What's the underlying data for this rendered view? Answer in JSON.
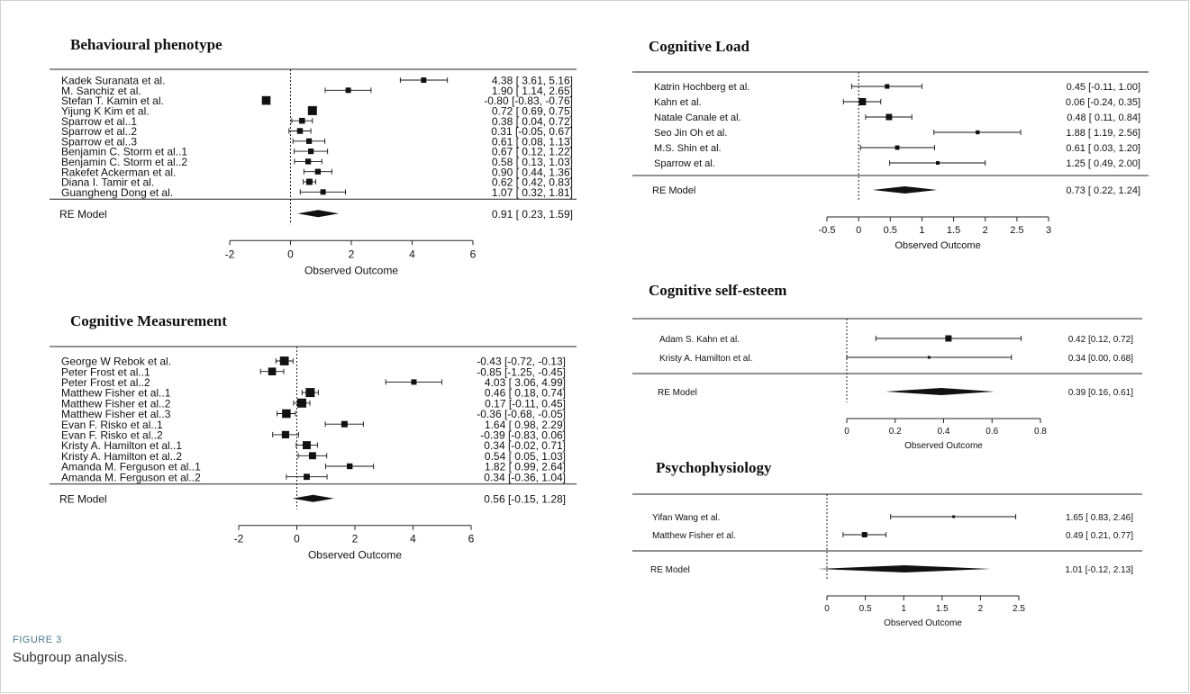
{
  "figure": {
    "label": "FIGURE 3",
    "caption": "Subgroup analysis."
  },
  "chart_data": [
    {
      "type": "forest",
      "title": "Behavioural phenotype",
      "xlabel": "Observed Outcome",
      "xlim": [
        -2,
        6
      ],
      "ticks": [
        -2,
        0,
        2,
        4,
        6
      ],
      "tick_labels": [
        "-2",
        "0",
        "2",
        "4",
        "6"
      ],
      "reference_line": 0,
      "studies": [
        {
          "name": "Kadek Suranata et al.",
          "est": 4.38,
          "lo": 3.61,
          "hi": 5.16,
          "ci_text": "4.38 [ 3.61,  5.16]"
        },
        {
          "name": "M. Sanchiz et al.",
          "est": 1.9,
          "lo": 1.14,
          "hi": 2.65,
          "ci_text": "1.90 [ 1.14,  2.65]"
        },
        {
          "name": "Stefan T. Kamin et al.",
          "est": -0.8,
          "lo": -0.83,
          "hi": -0.76,
          "ci_text": "-0.80 [-0.83, -0.76]"
        },
        {
          "name": "Yijung K Kim et al.",
          "est": 0.72,
          "lo": 0.69,
          "hi": 0.75,
          "ci_text": "0.72 [ 0.69,  0.75]"
        },
        {
          "name": "Sparrow et al..1",
          "est": 0.38,
          "lo": 0.04,
          "hi": 0.72,
          "ci_text": "0.38 [ 0.04,  0.72]"
        },
        {
          "name": "Sparrow et al..2",
          "est": 0.31,
          "lo": -0.05,
          "hi": 0.67,
          "ci_text": "0.31 [-0.05,  0.67]"
        },
        {
          "name": "Sparrow et al..3",
          "est": 0.61,
          "lo": 0.08,
          "hi": 1.13,
          "ci_text": "0.61 [ 0.08,  1.13]"
        },
        {
          "name": "Benjamin C. Storm et al..1",
          "est": 0.67,
          "lo": 0.12,
          "hi": 1.22,
          "ci_text": "0.67 [ 0.12,  1.22]"
        },
        {
          "name": "Benjamin C. Storm et al..2",
          "est": 0.58,
          "lo": 0.13,
          "hi": 1.03,
          "ci_text": "0.58 [ 0.13,  1.03]"
        },
        {
          "name": "Rakefet Ackerman et al.",
          "est": 0.9,
          "lo": 0.44,
          "hi": 1.36,
          "ci_text": "0.90 [ 0.44,  1.36]"
        },
        {
          "name": "Diana I. Tamir et al.",
          "est": 0.62,
          "lo": 0.42,
          "hi": 0.83,
          "ci_text": "0.62 [ 0.42,  0.83]"
        },
        {
          "name": "Guangheng Dong et al.",
          "est": 1.07,
          "lo": 0.32,
          "hi": 1.81,
          "ci_text": "1.07 [ 0.32,  1.81]"
        }
      ],
      "pooled": {
        "name": "RE Model",
        "est": 0.91,
        "lo": 0.23,
        "hi": 1.59,
        "ci_text": "0.91 [ 0.23,  1.59]"
      }
    },
    {
      "type": "forest",
      "title": "Cognitive Measurement",
      "xlabel": "Observed Outcome",
      "xlim": [
        -2,
        6
      ],
      "ticks": [
        -2,
        0,
        2,
        4,
        6
      ],
      "tick_labels": [
        "-2",
        "0",
        "2",
        "4",
        "6"
      ],
      "reference_line": 0,
      "studies": [
        {
          "name": "George W Rebok et al.",
          "est": -0.43,
          "lo": -0.72,
          "hi": -0.13,
          "ci_text": "-0.43 [-0.72, -0.13]"
        },
        {
          "name": "Peter Frost et al..1",
          "est": -0.85,
          "lo": -1.25,
          "hi": -0.45,
          "ci_text": "-0.85 [-1.25, -0.45]"
        },
        {
          "name": "Peter Frost et al..2",
          "est": 4.03,
          "lo": 3.06,
          "hi": 4.99,
          "ci_text": "4.03 [ 3.06,  4.99]"
        },
        {
          "name": "Matthew Fisher et al..1",
          "est": 0.46,
          "lo": 0.18,
          "hi": 0.74,
          "ci_text": "0.46 [ 0.18,  0.74]"
        },
        {
          "name": "Matthew Fisher et al..2",
          "est": 0.17,
          "lo": -0.11,
          "hi": 0.45,
          "ci_text": "0.17 [-0.11,  0.45]"
        },
        {
          "name": "Matthew Fisher et al..3",
          "est": -0.36,
          "lo": -0.68,
          "hi": -0.05,
          "ci_text": "-0.36 [-0.68, -0.05]"
        },
        {
          "name": "Evan F. Risko et al..1",
          "est": 1.64,
          "lo": 0.98,
          "hi": 2.29,
          "ci_text": "1.64 [ 0.98,  2.29]"
        },
        {
          "name": "Evan F. Risko et al..2",
          "est": -0.39,
          "lo": -0.83,
          "hi": 0.06,
          "ci_text": "-0.39 [-0.83,  0.06]"
        },
        {
          "name": "Kristy A. Hamilton et al..1",
          "est": 0.34,
          "lo": -0.02,
          "hi": 0.71,
          "ci_text": "0.34 [-0.02,  0.71]"
        },
        {
          "name": "Kristy A. Hamilton et al..2",
          "est": 0.54,
          "lo": 0.05,
          "hi": 1.03,
          "ci_text": "0.54 [ 0.05,  1.03]"
        },
        {
          "name": "Amanda M. Ferguson et al..1",
          "est": 1.82,
          "lo": 0.99,
          "hi": 2.64,
          "ci_text": "1.82 [ 0.99,  2.64]"
        },
        {
          "name": "Amanda M. Ferguson et al..2",
          "est": 0.34,
          "lo": -0.36,
          "hi": 1.04,
          "ci_text": "0.34 [-0.36,  1.04]"
        }
      ],
      "pooled": {
        "name": "RE Model",
        "est": 0.56,
        "lo": -0.15,
        "hi": 1.28,
        "ci_text": "0.56 [-0.15,  1.28]"
      }
    },
    {
      "type": "forest",
      "title": "Cognitive Load",
      "xlabel": "Observed Outcome",
      "xlim": [
        -0.5,
        3
      ],
      "ticks": [
        -0.5,
        0,
        0.5,
        1,
        1.5,
        2,
        2.5,
        3
      ],
      "tick_labels": [
        "-0.5",
        "0",
        "0.5",
        "1",
        "1.5",
        "2",
        "2.5",
        "3"
      ],
      "reference_line": 0,
      "studies": [
        {
          "name": "Katrin Hochberg et al.",
          "est": 0.45,
          "lo": -0.11,
          "hi": 1.0,
          "ci_text": "0.45 [-0.11, 1.00]"
        },
        {
          "name": "Kahn et al.",
          "est": 0.06,
          "lo": -0.24,
          "hi": 0.35,
          "ci_text": "0.06 [-0.24, 0.35]"
        },
        {
          "name": "Natale Canale et al.",
          "est": 0.48,
          "lo": 0.11,
          "hi": 0.84,
          "ci_text": "0.48 [ 0.11, 0.84]"
        },
        {
          "name": "Seo Jin Oh et al.",
          "est": 1.88,
          "lo": 1.19,
          "hi": 2.56,
          "ci_text": "1.88 [ 1.19, 2.56]"
        },
        {
          "name": "M.S. Shin et al.",
          "est": 0.61,
          "lo": 0.03,
          "hi": 1.2,
          "ci_text": "0.61 [ 0.03, 1.20]"
        },
        {
          "name": "Sparrow et al.",
          "est": 1.25,
          "lo": 0.49,
          "hi": 2.0,
          "ci_text": "1.25 [ 0.49, 2.00]"
        }
      ],
      "pooled": {
        "name": "RE Model",
        "est": 0.73,
        "lo": 0.22,
        "hi": 1.24,
        "ci_text": "0.73 [ 0.22, 1.24]"
      }
    },
    {
      "type": "forest",
      "title": "Cognitive self-esteem",
      "xlabel": "Observed Outcome",
      "xlim": [
        0,
        0.8
      ],
      "ticks": [
        0,
        0.2,
        0.4,
        0.6,
        0.8
      ],
      "tick_labels": [
        "0",
        "0.2",
        "0.4",
        "0.6",
        "0.8"
      ],
      "reference_line": 0,
      "studies": [
        {
          "name": "Adam S. Kahn et al.",
          "est": 0.42,
          "lo": 0.12,
          "hi": 0.72,
          "ci_text": "0.42 [0.12, 0.72]"
        },
        {
          "name": "Kristy A. Hamilton et al.",
          "est": 0.34,
          "lo": 0.0,
          "hi": 0.68,
          "ci_text": "0.34 [0.00, 0.68]"
        }
      ],
      "pooled": {
        "name": "RE Model",
        "est": 0.39,
        "lo": 0.16,
        "hi": 0.61,
        "ci_text": "0.39 [0.16, 0.61]"
      }
    },
    {
      "type": "forest",
      "title": "Psychophysiology",
      "xlabel": "Observed Outcome",
      "xlim": [
        0,
        2.5
      ],
      "ticks": [
        0,
        0.5,
        1,
        1.5,
        2,
        2.5
      ],
      "tick_labels": [
        "0",
        "0.5",
        "1",
        "1.5",
        "2",
        "2.5"
      ],
      "reference_line": 0,
      "studies": [
        {
          "name": "Yifan Wang et al.",
          "est": 1.65,
          "lo": 0.83,
          "hi": 2.46,
          "ci_text": "1.65 [ 0.83, 2.46]"
        },
        {
          "name": "Matthew Fisher et al.",
          "est": 0.49,
          "lo": 0.21,
          "hi": 0.77,
          "ci_text": "0.49 [ 0.21, 0.77]"
        }
      ],
      "pooled": {
        "name": "RE Model",
        "est": 1.01,
        "lo": -0.12,
        "hi": 2.13,
        "ci_text": "1.01 [-0.12, 2.13]"
      }
    }
  ]
}
